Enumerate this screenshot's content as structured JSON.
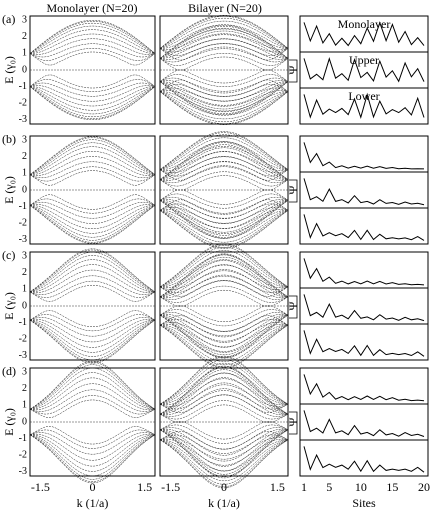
{
  "header": {
    "col1": "Monolayer (N=20)",
    "col2": "Bilayer (N=20)"
  },
  "rows": [
    {
      "label": "(a)",
      "y_label": "E (γ₀)",
      "psi": "Ψ",
      "psi_panels": [
        "Monolayer",
        "Upper",
        "Lower"
      ]
    },
    {
      "label": "(b)",
      "y_label": "E (γ₀)",
      "psi": "Ψ"
    },
    {
      "label": "(c)",
      "y_label": "E (γ₀)",
      "psi": "Ψ"
    },
    {
      "label": "(d)",
      "y_label": "E (γ₀)",
      "psi": "Ψ"
    }
  ],
  "y_ticks": [
    "3",
    "2",
    "1",
    "0",
    "-1",
    "-2",
    "-3"
  ],
  "x_axis": {
    "k_ticks": [
      "-1.5",
      "0",
      "1.5"
    ],
    "k_label": "k (1/a)",
    "site_ticks": [
      "1",
      "5",
      "10",
      "15",
      "20"
    ],
    "site_label": "Sites"
  }
}
